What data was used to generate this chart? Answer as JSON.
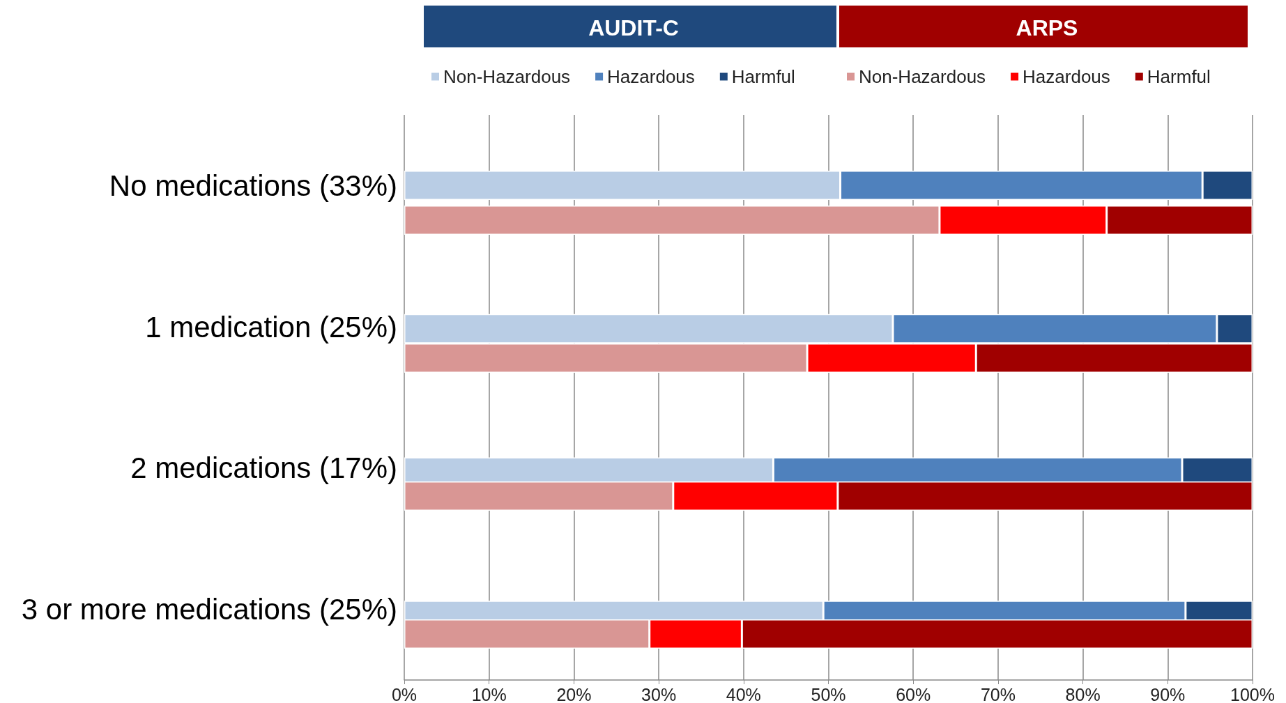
{
  "chart_data": [
    {
      "type": "bar",
      "orientation": "horizontal",
      "stacked": true,
      "title": "AUDIT-C",
      "categories": [
        "No medications (33%)",
        "1 medication (25%)",
        "2 medications (17%)",
        "3 or more medications (25%)"
      ],
      "series": [
        {
          "name": "Non-Hazardous",
          "color": "#b9cde5",
          "values": [
            51.4,
            57.6,
            43.5,
            49.4
          ]
        },
        {
          "name": "Hazardous",
          "color": "#4f81bd",
          "values": [
            42.7,
            38.2,
            48.2,
            42.7
          ]
        },
        {
          "name": "Harmful",
          "color": "#1f497d",
          "values": [
            5.9,
            4.2,
            8.3,
            7.9
          ]
        }
      ],
      "xlim": [
        0,
        100
      ],
      "xticks": [
        {
          "value": 0,
          "label": "0%"
        },
        {
          "value": 10,
          "label": "10%"
        },
        {
          "value": 20,
          "label": "20%"
        },
        {
          "value": 30,
          "label": "30%"
        },
        {
          "value": 40,
          "label": "40%"
        },
        {
          "value": 50,
          "label": "50%"
        },
        {
          "value": 60,
          "label": "60%"
        },
        {
          "value": 70,
          "label": "70%"
        },
        {
          "value": 80,
          "label": "80%"
        },
        {
          "value": 90,
          "label": "90%"
        },
        {
          "value": 100,
          "label": "100%"
        }
      ],
      "grid": "x",
      "legend": "top"
    },
    {
      "type": "bar",
      "orientation": "horizontal",
      "stacked": true,
      "title": "ARPS",
      "categories": [
        null,
        null,
        null,
        null
      ],
      "series": [
        {
          "name": "Non-Hazardous",
          "color": "#d99694",
          "values": [
            63.1,
            47.5,
            31.7,
            28.9
          ]
        },
        {
          "name": "Hazardous",
          "color": "#ff0000",
          "values": [
            19.7,
            19.9,
            19.4,
            10.9
          ]
        },
        {
          "name": "Harmful",
          "color": "#a00000",
          "values": [
            17.2,
            32.6,
            48.9,
            60.2
          ]
        }
      ],
      "xlim": [
        0,
        100
      ],
      "legend": "top",
      "tick_labels": false
    }
  ]
}
